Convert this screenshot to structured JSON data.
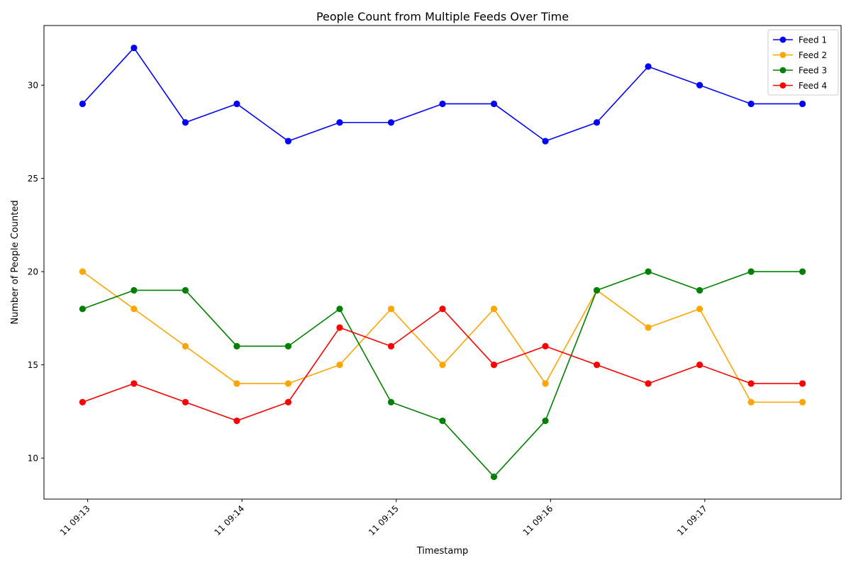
{
  "chart_data": {
    "type": "line",
    "title": "People Count from Multiple Feeds Over Time",
    "xlabel": "Timestamp",
    "ylabel": "Number of People Counted",
    "x": [
      "09:12:58",
      "09:13:18",
      "09:13:38",
      "09:13:58",
      "09:14:18",
      "09:14:38",
      "09:14:58",
      "09:15:18",
      "09:15:38",
      "09:15:58",
      "09:16:18",
      "09:16:38",
      "09:16:58",
      "09:17:18",
      "09:17:38"
    ],
    "x_ticks": [
      {
        "time": "09:13:00",
        "label": "11 09:13"
      },
      {
        "time": "09:14:00",
        "label": "11 09:14"
      },
      {
        "time": "09:15:00",
        "label": "11 09:15"
      },
      {
        "time": "09:16:00",
        "label": "11 09:16"
      },
      {
        "time": "09:17:00",
        "label": "11 09:17"
      }
    ],
    "xlim": [
      "09:12:43",
      "09:17:53"
    ],
    "ylim": [
      7.8,
      33.2
    ],
    "y_ticks": [
      10,
      15,
      20,
      25,
      30
    ],
    "grid": false,
    "legend_position": "top-right",
    "series": [
      {
        "name": "Feed 1",
        "color": "#0000ff",
        "values": [
          29,
          32,
          28,
          29,
          27,
          28,
          28,
          29,
          29,
          27,
          28,
          31,
          30,
          29,
          29
        ]
      },
      {
        "name": "Feed 2",
        "color": "#ffa500",
        "values": [
          20,
          18,
          16,
          14,
          14,
          15,
          18,
          15,
          18,
          14,
          19,
          17,
          18,
          13,
          13
        ]
      },
      {
        "name": "Feed 3",
        "color": "#008000",
        "values": [
          18,
          19,
          19,
          16,
          16,
          18,
          13,
          12,
          9,
          12,
          19,
          20,
          19,
          20,
          20
        ]
      },
      {
        "name": "Feed 4",
        "color": "#ff0000",
        "values": [
          13,
          14,
          13,
          12,
          13,
          17,
          16,
          18,
          15,
          16,
          15,
          14,
          15,
          14,
          14
        ]
      }
    ]
  }
}
